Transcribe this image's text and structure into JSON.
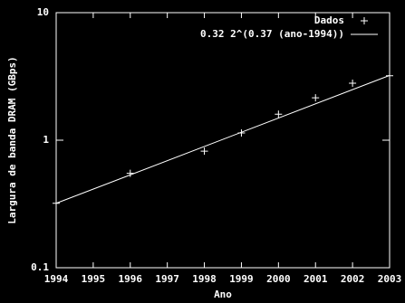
{
  "chart_data": {
    "type": "scatter",
    "x_label": "Ano",
    "y_label": "Largura de banda DRAM (GBps)",
    "xlim": [
      1994,
      2003
    ],
    "xticks": [
      1994,
      1995,
      1996,
      1997,
      1998,
      1999,
      2000,
      2001,
      2002,
      2003
    ],
    "ylim": [
      0.1,
      10
    ],
    "yticks": [
      0.1,
      1,
      10
    ],
    "y_scale": "log",
    "legend": "top-right",
    "series": [
      {
        "name": "Dados",
        "color": "#ffffff",
        "mode": "points",
        "x": [
          1994,
          1996,
          1998,
          1999,
          2000,
          2001,
          2002,
          2003
        ],
        "values": [
          0.32,
          0.55,
          0.82,
          1.14,
          1.6,
          2.15,
          2.8,
          3.2
        ]
      },
      {
        "name": "0.32 2^(0.37 (ano-1994))",
        "color": "#ffffff",
        "mode": "line",
        "x": [
          1994,
          2003
        ],
        "values": [
          0.32,
          3.22
        ]
      }
    ]
  }
}
